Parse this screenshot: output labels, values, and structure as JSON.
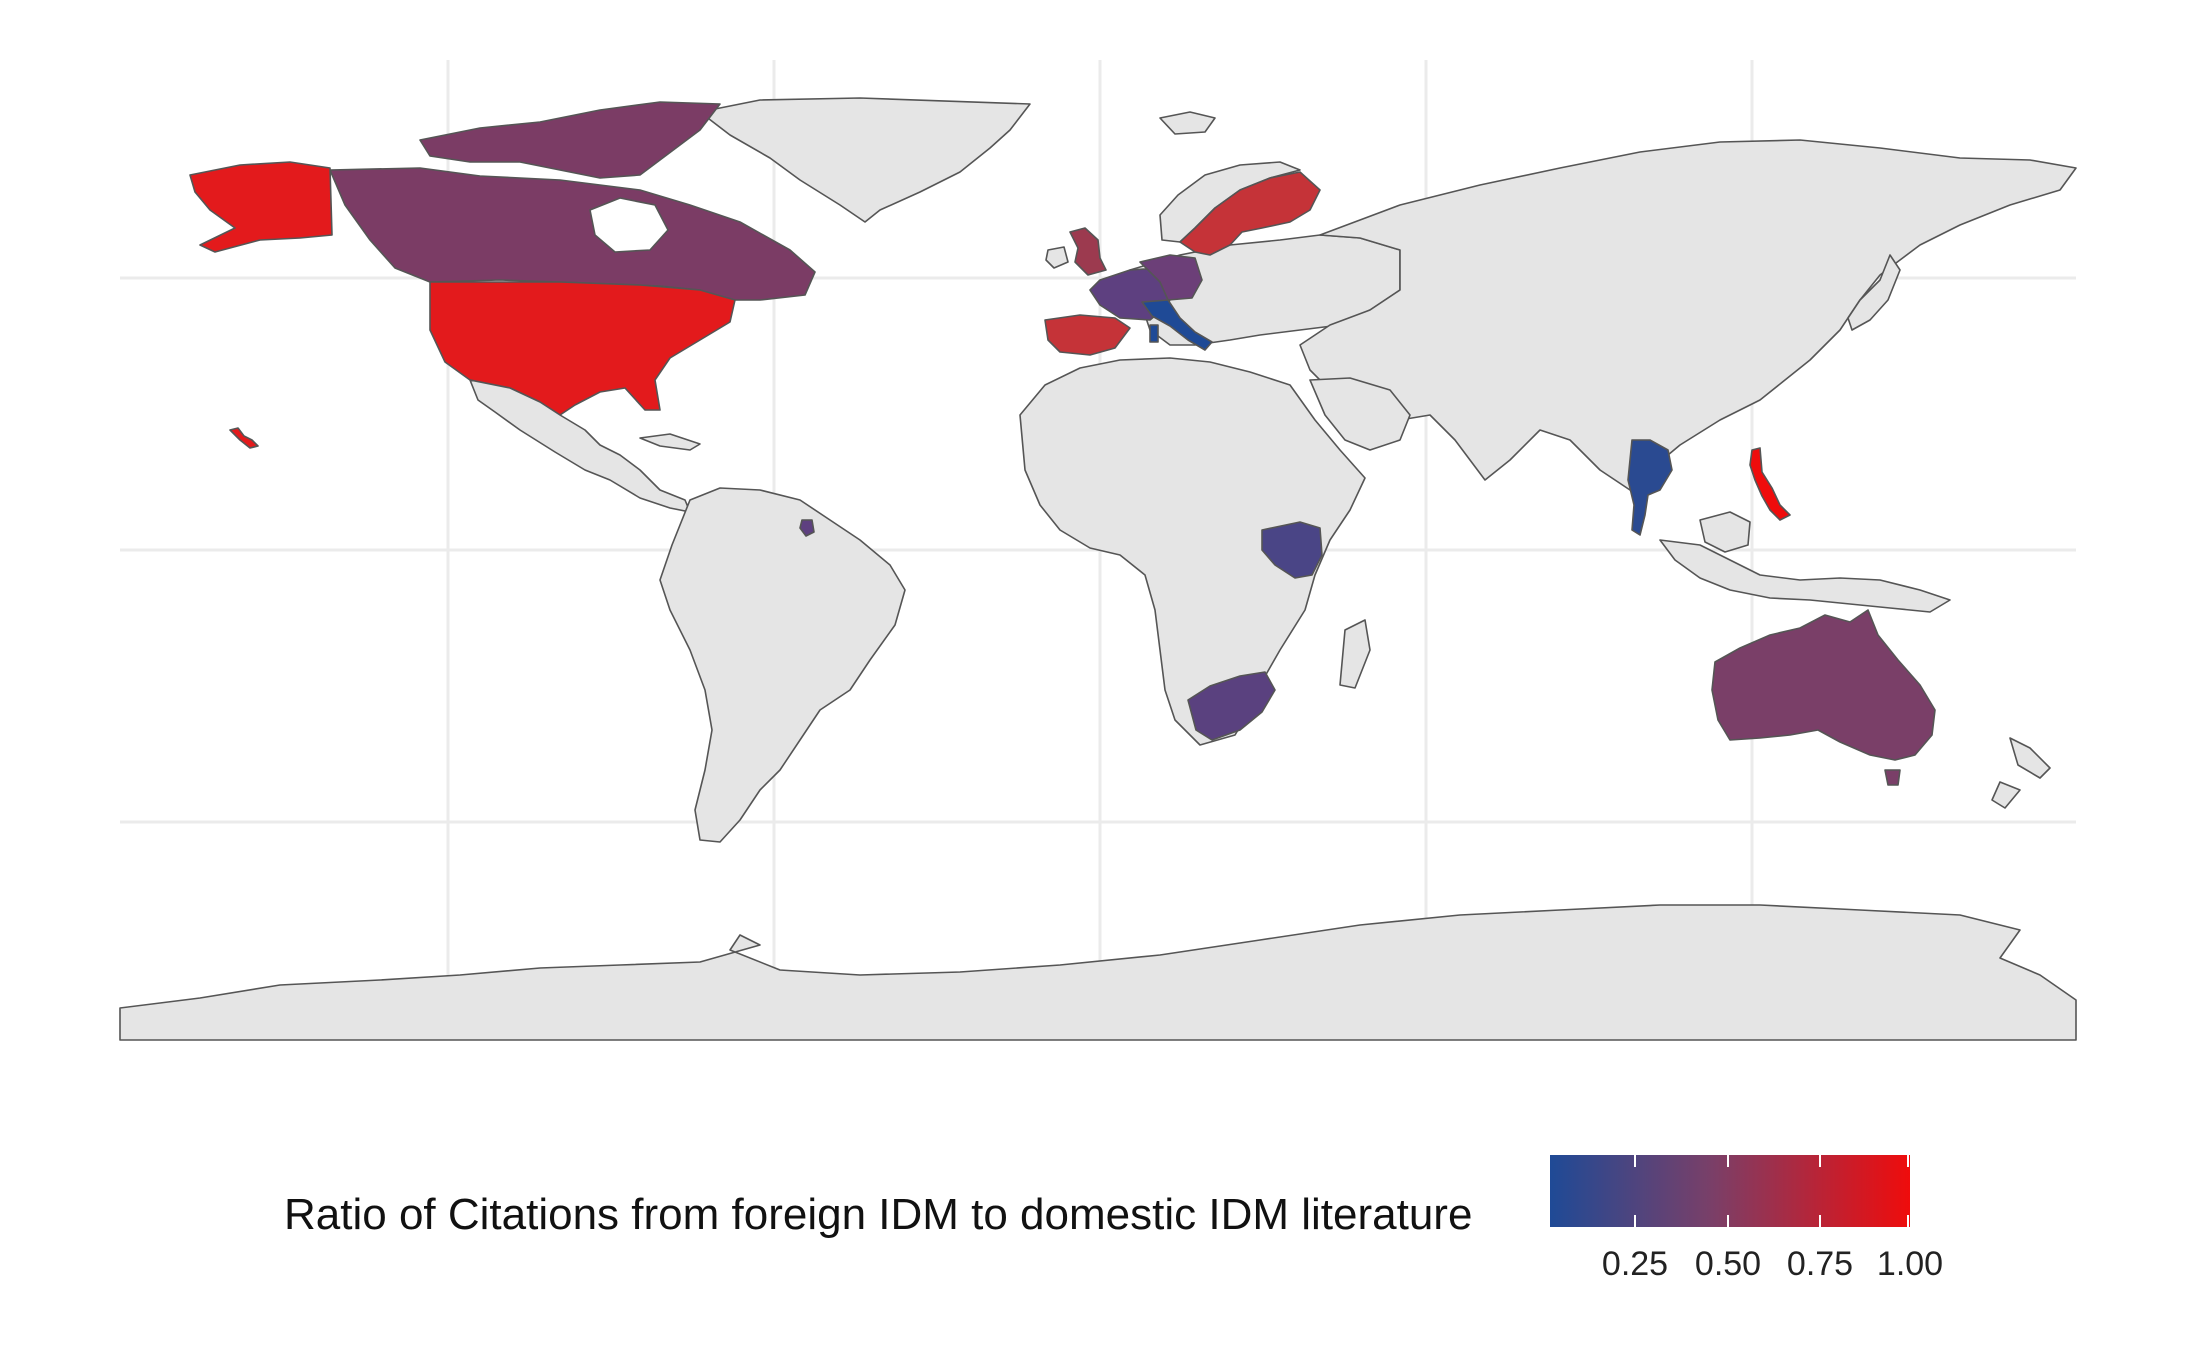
{
  "legend": {
    "title": "Ratio of Citations from foreign IDM to domestic IDM literature",
    "ticks": [
      "0.25",
      "0.50",
      "0.75",
      "1.00"
    ],
    "color_low": "#1f4a96",
    "color_high": "#ef0c0c"
  },
  "colors": {
    "land_default": "#e5e5e5",
    "border": "#555555",
    "grid": "#ebebeb"
  },
  "chart_data": {
    "type": "choropleth",
    "scale_range": [
      0.0,
      1.0
    ],
    "regions": [
      {
        "name": "Alaska (USA)",
        "value": 1.0
      },
      {
        "name": "USA",
        "value": 1.0
      },
      {
        "name": "Canada",
        "value": 0.5
      },
      {
        "name": "United Kingdom",
        "value": 0.55
      },
      {
        "name": "France",
        "value": 0.3
      },
      {
        "name": "Germany",
        "value": 0.35
      },
      {
        "name": "Spain",
        "value": 0.8
      },
      {
        "name": "Portugal",
        "value": 0.8
      },
      {
        "name": "Italy",
        "value": 0.0
      },
      {
        "name": "Sweden",
        "value": 0.75
      },
      {
        "name": "Finland",
        "value": 0.75
      },
      {
        "name": "French Guiana",
        "value": 0.35
      },
      {
        "name": "Kenya",
        "value": 0.15
      },
      {
        "name": "Uganda",
        "value": 0.15
      },
      {
        "name": "South Africa",
        "value": 0.25
      },
      {
        "name": "Thailand",
        "value": 0.05
      },
      {
        "name": "Philippines",
        "value": 1.0
      },
      {
        "name": "Australia",
        "value": 0.45
      },
      {
        "name": "Hawaii (USA)",
        "value": 1.0
      }
    ]
  }
}
